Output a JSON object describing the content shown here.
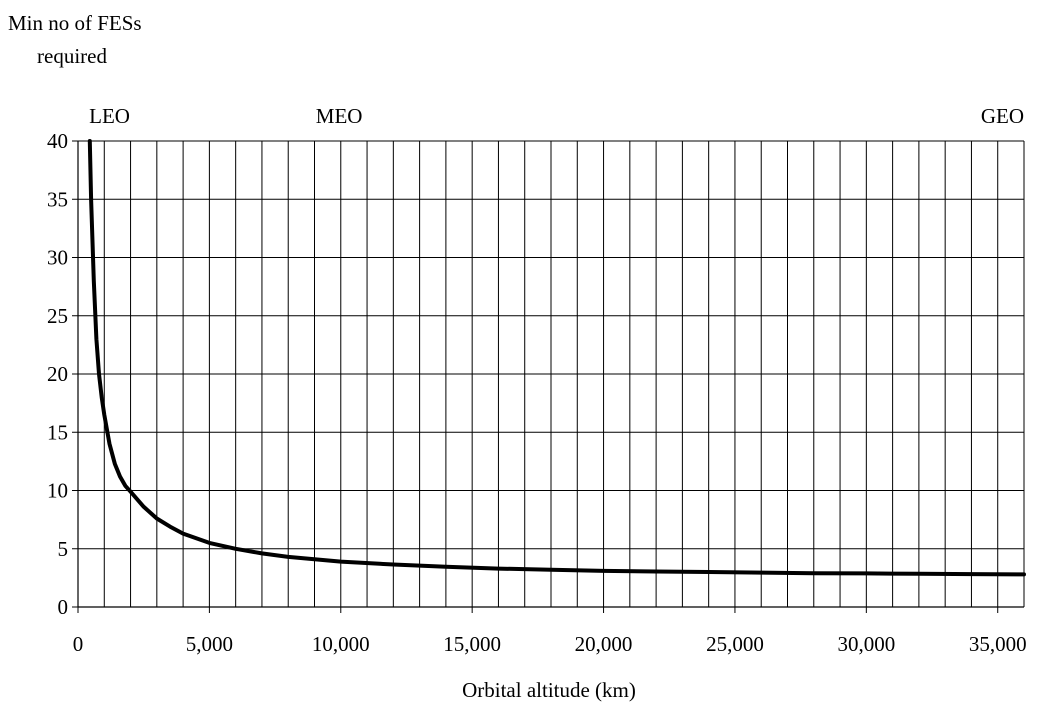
{
  "chart_data": {
    "type": "line",
    "ylabel_line1": "Min no of FESs",
    "ylabel_line2": "required",
    "xlabel": "Orbital altitude (km)",
    "xlim": [
      0,
      36000
    ],
    "ylim": [
      0,
      40
    ],
    "x_ticks": [
      0,
      5000,
      10000,
      15000,
      20000,
      25000,
      30000,
      35000
    ],
    "x_tick_labels": [
      "0",
      "5,000",
      "10,000",
      "15,000",
      "20,000",
      "25,000",
      "30,000",
      "35,000"
    ],
    "y_ticks": [
      0,
      5,
      10,
      15,
      20,
      25,
      30,
      35,
      40
    ],
    "y_tick_labels": [
      "0",
      "5",
      "10",
      "15",
      "20",
      "25",
      "30",
      "35",
      "40"
    ],
    "vertical_grid_step": 1000,
    "horizontal_grid": true,
    "line_color": "#000000",
    "region_labels": [
      {
        "text": "LEO",
        "x": 500
      },
      {
        "text": "MEO",
        "x": 10000
      },
      {
        "text": "GEO",
        "x": 36000
      }
    ],
    "series": [
      {
        "x": [
          450,
          500,
          600,
          700,
          800,
          900,
          1000,
          1200,
          1400,
          1600,
          1800,
          2000,
          2500,
          3000,
          3500,
          4000,
          5000,
          6000,
          7000,
          8000,
          9000,
          10000,
          12000,
          14000,
          16000,
          18000,
          20000,
          22000,
          24000,
          26000,
          28000,
          30000,
          32000,
          34000,
          36000
        ],
        "y": [
          40,
          35,
          28,
          23,
          20,
          18,
          16.5,
          14,
          12.3,
          11.2,
          10.4,
          9.9,
          8.6,
          7.6,
          6.9,
          6.3,
          5.5,
          5.0,
          4.6,
          4.3,
          4.1,
          3.9,
          3.65,
          3.45,
          3.3,
          3.2,
          3.1,
          3.05,
          3.0,
          2.95,
          2.9,
          2.88,
          2.85,
          2.82,
          2.8
        ]
      }
    ]
  }
}
